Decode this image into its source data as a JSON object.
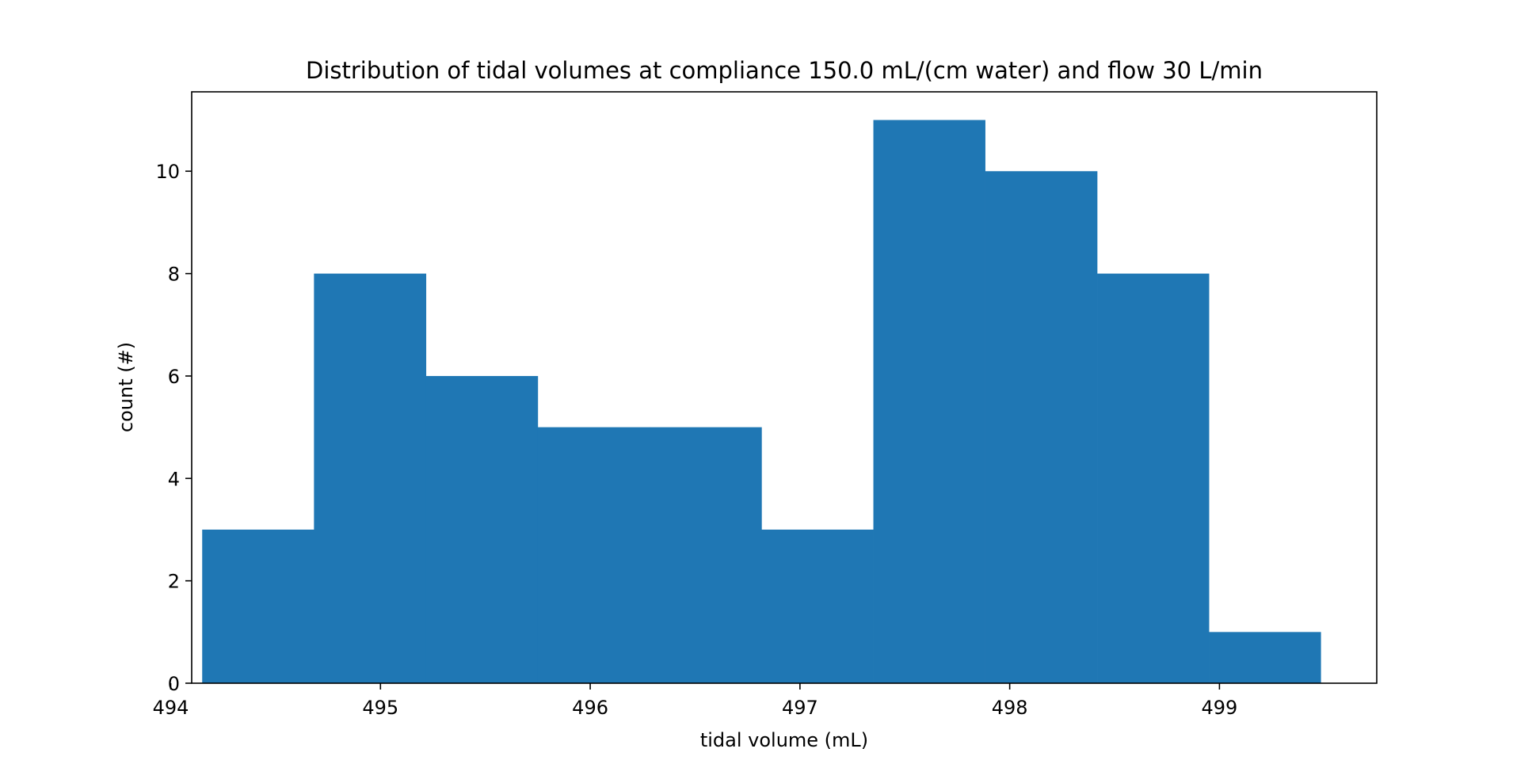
{
  "chart_data": {
    "type": "bar",
    "title": "Distribution of tidal volumes at compliance 150.0 mL/(cm water) and flow 30 L/min",
    "xlabel": "tidal volume (mL)",
    "ylabel": "count (#)",
    "xlim": [
      494.1,
      499.75
    ],
    "ylim": [
      0,
      11.55
    ],
    "x_ticks": [
      494,
      495,
      496,
      497,
      498,
      499
    ],
    "x_tick_labels": [
      "494",
      "495",
      "496",
      "497",
      "498",
      "499"
    ],
    "y_ticks": [
      0,
      2,
      4,
      6,
      8,
      10
    ],
    "y_tick_labels": [
      "0",
      "2",
      "4",
      "6",
      "8",
      "10"
    ],
    "bin_edges": [
      494.15,
      494.683,
      495.217,
      495.75,
      496.283,
      496.817,
      497.35,
      497.883,
      498.417,
      498.95,
      499.483
    ],
    "values": [
      3,
      8,
      6,
      5,
      5,
      3,
      11,
      10,
      8,
      1
    ],
    "bar_color": "#1f77b4",
    "grid": false,
    "legend": "none"
  }
}
